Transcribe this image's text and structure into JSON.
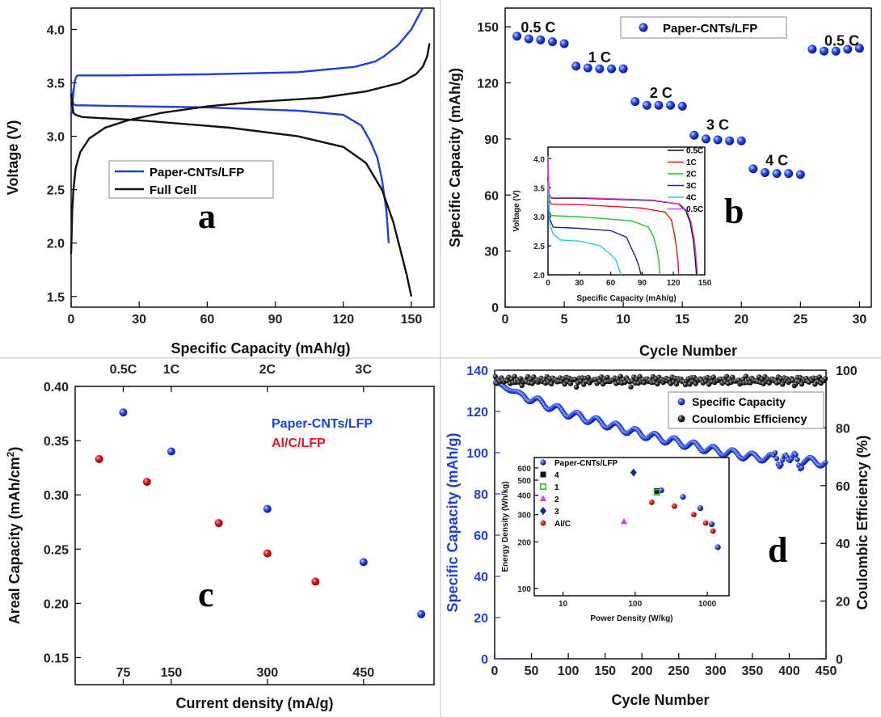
{
  "colors": {
    "blue": "#1f3fd6",
    "red": "#e8141b",
    "black": "#111111",
    "green": "#29c02b",
    "magenta": "#e040d9",
    "cyan": "#28c8e8",
    "navy": "#1a2a7a"
  },
  "chart_data": [
    {
      "id": "a",
      "type": "line",
      "letter": "a",
      "xlabel": "Specific Capacity (mAh/g)",
      "ylabel": "Voltage (V)",
      "xlim": [
        0,
        160
      ],
      "ylim": [
        1.4,
        4.2
      ],
      "xticks": [
        "0",
        "30",
        "60",
        "90",
        "120",
        "150"
      ],
      "yticks": [
        "1.5",
        "2.0",
        "2.5",
        "3.0",
        "3.5",
        "4.0"
      ],
      "legend": [
        "Paper-CNTs/LFP",
        "Full Cell"
      ],
      "series": [
        {
          "name": "Paper-CNTs/LFP",
          "color": "blue",
          "x": [
            0,
            0.5,
            1,
            1.6,
            2.3,
            3,
            5,
            20,
            60,
            100,
            125,
            134,
            138,
            144,
            150,
            155
          ],
          "y": [
            3.2,
            3.3,
            3.4,
            3.52,
            3.56,
            3.57,
            3.57,
            3.57,
            3.58,
            3.6,
            3.65,
            3.7,
            3.75,
            3.85,
            4.0,
            4.2
          ]
        },
        {
          "name": "Paper-CNTs/LFP",
          "color": "blue",
          "x": [
            0,
            0.5,
            1,
            2,
            5,
            30,
            60,
            100,
            120,
            128,
            132,
            135,
            137,
            139,
            140
          ],
          "y": [
            3.45,
            3.35,
            3.3,
            3.29,
            3.29,
            3.28,
            3.27,
            3.24,
            3.2,
            3.1,
            2.95,
            2.8,
            2.6,
            2.3,
            2.0
          ]
        },
        {
          "name": "Full Cell",
          "color": "black",
          "x": [
            0,
            0.5,
            1,
            2,
            4,
            8,
            15,
            25,
            40,
            60,
            80,
            110,
            130,
            145,
            152,
            155,
            157,
            158
          ],
          "y": [
            1.9,
            2.3,
            2.5,
            2.7,
            2.85,
            2.98,
            3.08,
            3.15,
            3.22,
            3.28,
            3.32,
            3.36,
            3.42,
            3.5,
            3.58,
            3.65,
            3.75,
            3.87
          ]
        },
        {
          "name": "Full Cell",
          "color": "black",
          "x": [
            0,
            0.5,
            1,
            2,
            5,
            30,
            70,
            100,
            120,
            130,
            137,
            142,
            145,
            148,
            150
          ],
          "y": [
            3.4,
            3.3,
            3.22,
            3.2,
            3.18,
            3.15,
            3.08,
            3.0,
            2.9,
            2.75,
            2.5,
            2.2,
            1.95,
            1.7,
            1.5
          ]
        }
      ]
    },
    {
      "id": "b",
      "type": "scatter",
      "letter": "b",
      "xlabel": "Cycle Number",
      "ylabel": "Specific Capacity (mAh/g)",
      "xlim": [
        0,
        31
      ],
      "ylim": [
        0,
        160
      ],
      "xticks": [
        "0",
        "5",
        "10",
        "15",
        "20",
        "25",
        "30"
      ],
      "yticks": [
        "0",
        "30",
        "60",
        "90",
        "120",
        "150"
      ],
      "legend": [
        "Paper-CNTs/LFP"
      ],
      "rate_labels": [
        {
          "text": "0.5 C",
          "x": 2.8,
          "y": 147
        },
        {
          "text": "1 C",
          "x": 8.0,
          "y": 131
        },
        {
          "text": "2 C",
          "x": 13.2,
          "y": 112
        },
        {
          "text": "3 C",
          "x": 18.0,
          "y": 95
        },
        {
          "text": "4 C",
          "x": 23.0,
          "y": 76
        },
        {
          "text": "0.5 C",
          "x": 28.5,
          "y": 140
        }
      ],
      "series": [
        {
          "name": "Paper-CNTs/LFP",
          "color": "blue",
          "x": [
            1,
            2,
            3,
            4,
            5,
            6,
            7,
            8,
            9,
            10,
            11,
            12,
            13,
            14,
            15,
            16,
            17,
            18,
            19,
            20,
            21,
            22,
            23,
            24,
            25,
            26,
            27,
            28,
            29,
            30
          ],
          "y": [
            145,
            143.5,
            143,
            142,
            141,
            129,
            128,
            127.5,
            127.5,
            127.5,
            110,
            108,
            108,
            108,
            107.5,
            92,
            90,
            89.5,
            89,
            89,
            74,
            72,
            71.5,
            71.5,
            71,
            138,
            137,
            137,
            138,
            138.5
          ]
        }
      ],
      "inset": {
        "xlabel": "Specific Capacity (mAh/g)",
        "ylabel": "Voltage (V)",
        "xlim": [
          0,
          150
        ],
        "ylim": [
          2.0,
          4.2
        ],
        "xticks": [
          "0",
          "30",
          "60",
          "90",
          "120",
          "150"
        ],
        "yticks": [
          "2.0",
          "2.5",
          "3.0",
          "3.5",
          "4.0"
        ],
        "legend": [
          "0.5C",
          "1C",
          "2C",
          "3C",
          "4C",
          "0.5C"
        ],
        "series": [
          {
            "name": "0.5C",
            "color": "black",
            "x": [
              0,
              1,
              3,
              30,
              100,
              125,
              132,
              136,
              139,
              141,
              142
            ],
            "y": [
              4.0,
              3.4,
              3.32,
              3.32,
              3.28,
              3.22,
              3.1,
              2.9,
              2.6,
              2.25,
              2.0
            ]
          },
          {
            "name": "1C",
            "color": "red",
            "x": [
              0,
              1,
              3,
              30,
              90,
              112,
              118,
              121,
              123,
              124.5,
              125
            ],
            "y": [
              3.9,
              3.3,
              3.22,
              3.21,
              3.15,
              3.08,
              2.95,
              2.7,
              2.45,
              2.2,
              2.0
            ]
          },
          {
            "name": "2C",
            "color": "green",
            "x": [
              0,
              1,
              3,
              30,
              80,
              96,
              101,
              104,
              106,
              107
            ],
            "y": [
              3.8,
              3.1,
              3.02,
              3.0,
              2.93,
              2.82,
              2.65,
              2.45,
              2.25,
              2.0
            ]
          },
          {
            "name": "3C",
            "color": "navy",
            "x": [
              0,
              1,
              2,
              5,
              30,
              60,
              75,
              80,
              84,
              87,
              89
            ],
            "y": [
              3.7,
              3.1,
              2.95,
              2.82,
              2.8,
              2.76,
              2.65,
              2.45,
              2.3,
              2.15,
              2.0
            ]
          },
          {
            "name": "4C",
            "color": "cyan",
            "x": [
              0,
              1,
              2,
              5,
              12,
              30,
              50,
              60,
              65,
              68,
              70
            ],
            "y": [
              3.6,
              3.0,
              2.85,
              2.7,
              2.6,
              2.58,
              2.5,
              2.35,
              2.25,
              2.1,
              2.0
            ]
          },
          {
            "name": "0.5C",
            "color": "magenta",
            "x": [
              0,
              1,
              3,
              30,
              100,
              126,
              133,
              137,
              140,
              142,
              143
            ],
            "y": [
              4.05,
              3.4,
              3.33,
              3.33,
              3.29,
              3.22,
              3.1,
              2.9,
              2.6,
              2.25,
              2.0
            ]
          }
        ]
      }
    },
    {
      "id": "c",
      "type": "scatter",
      "letter": "c",
      "xlabel": "Current density (mA/g)",
      "ylabel": "Areal Capacity (mAh/cm",
      "ylabel_sup": "2",
      "ylabel_end": ")",
      "xlim": [
        0,
        560
      ],
      "ylim": [
        0.125,
        0.4
      ],
      "xticks": [
        "75",
        "150",
        "300",
        "450"
      ],
      "yticks": [
        "0.15",
        "0.20",
        "0.25",
        "0.30",
        "0.35",
        "0.40"
      ],
      "top_ticks": [
        "0.5C",
        "1C",
        "2C",
        "3C"
      ],
      "legend": [
        "Paper-CNTs/LFP",
        "Al/C/LFP"
      ],
      "series": [
        {
          "name": "Paper-CNTs/LFP",
          "color": "blue",
          "x": [
            75,
            150,
            300,
            450,
            540
          ],
          "y": [
            0.376,
            0.34,
            0.287,
            0.238,
            0.19
          ]
        },
        {
          "name": "Al/C/LFP",
          "color": "red",
          "x": [
            37.5,
            112,
            224,
            300,
            375
          ],
          "y": [
            0.333,
            0.312,
            0.274,
            0.246,
            0.22
          ]
        }
      ]
    },
    {
      "id": "d",
      "type": "scatter",
      "letter": "d",
      "xlabel": "Cycle Number",
      "ylabel": "Specific Capacity (mAh/g)",
      "y2label": "Coulombic Efficiency (%)",
      "xlim": [
        0,
        450
      ],
      "ylim": [
        0,
        140
      ],
      "y2lim": [
        0,
        100
      ],
      "xticks": [
        "0",
        "50",
        "100",
        "150",
        "200",
        "250",
        "300",
        "350",
        "400",
        "450"
      ],
      "yticks": [
        "0",
        "20",
        "40",
        "60",
        "80",
        "100",
        "120",
        "140"
      ],
      "y2ticks": [
        "0",
        "20",
        "40",
        "60",
        "80",
        "100"
      ],
      "legend": [
        "Specific Capacity",
        "Coulombic Efficiency"
      ],
      "series": [
        {
          "name": "Specific Capacity",
          "color": "blue",
          "trend_x": [
            0,
            50,
            100,
            150,
            200,
            250,
            300,
            350,
            400,
            450
          ],
          "trend_y": [
            134,
            126,
            119,
            114,
            109,
            105,
            101,
            98,
            97,
            95
          ]
        },
        {
          "name": "Coulombic Efficiency",
          "color": "black",
          "trend_x": [
            0,
            450
          ],
          "trend_y": [
            96,
            97
          ]
        }
      ],
      "inset": {
        "xlabel": "Power Density (W/kg)",
        "ylabel": "Energy Density (Wh/kg)",
        "xlim": [
          4,
          2000
        ],
        "ylim": [
          90,
          700
        ],
        "xticks": [
          "10",
          "100",
          "1000"
        ],
        "yticks": [
          "100",
          "200",
          "300",
          "400",
          "500",
          "600"
        ],
        "legend": [
          "Paper-CNTs/LFP",
          "4",
          "1",
          "2",
          "3",
          "Al/C"
        ],
        "series": [
          {
            "name": "Paper-CNTs/LFP",
            "color": "blue",
            "marker": "sphere",
            "x": [
              230,
              460,
              800,
              1150,
              1400
            ],
            "y": [
              430,
              390,
              330,
              260,
              185
            ]
          },
          {
            "name": "4",
            "color": "black",
            "marker": "square",
            "x": [
              200
            ],
            "y": [
              425
            ]
          },
          {
            "name": "1",
            "color": "green",
            "marker": "square-open",
            "x": [
              200
            ],
            "y": [
              418
            ]
          },
          {
            "name": "2",
            "color": "magenta",
            "marker": "triangle",
            "x": [
              70
            ],
            "y": [
              270
            ]
          },
          {
            "name": "3",
            "color": "navy",
            "marker": "diamond",
            "x": [
              95
            ],
            "y": [
              560
            ]
          },
          {
            "name": "Al/C",
            "color": "red",
            "marker": "dot",
            "x": [
              170,
              350,
              650,
              950,
              1200
            ],
            "y": [
              360,
              340,
              300,
              265,
              235
            ]
          }
        ]
      }
    }
  ]
}
